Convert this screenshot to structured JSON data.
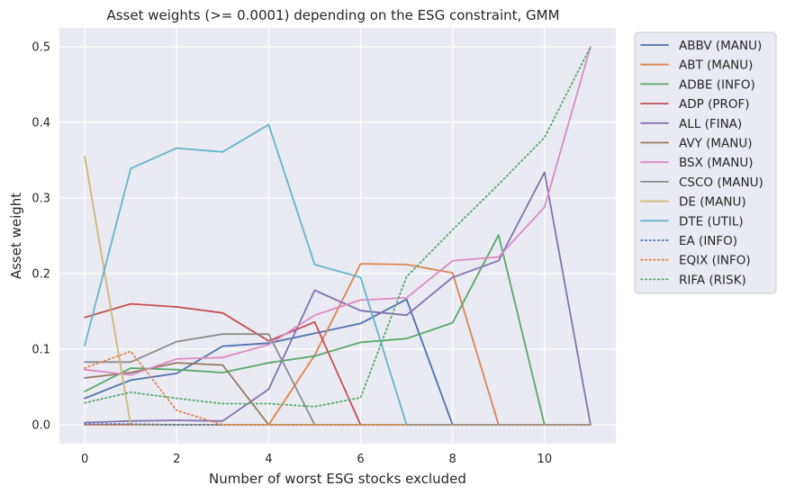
{
  "chart_data": {
    "type": "line",
    "title": "Asset weights (>= 0.0001) depending on the ESG constraint, GMM",
    "xlabel": "Number of worst ESG stocks excluded",
    "ylabel": "Asset weight",
    "xlim": [
      -0.55,
      11.55
    ],
    "ylim": [
      -0.025,
      0.525
    ],
    "xticks": [
      0,
      2,
      4,
      6,
      8,
      10
    ],
    "yticks": [
      0.0,
      0.1,
      0.2,
      0.3,
      0.4,
      0.5
    ],
    "ytick_labels": [
      "0.0",
      "0.1",
      "0.2",
      "0.3",
      "0.4",
      "0.5"
    ],
    "grid": true,
    "background": "#eaeaf2",
    "legend_position": "outside-right-top",
    "x": [
      0,
      1,
      2,
      3,
      4,
      5,
      6,
      7,
      8,
      9,
      10,
      11
    ],
    "series": [
      {
        "name": "ABBV (MANU)",
        "color": "#4c72b0",
        "style": "solid",
        "values": [
          0.035,
          0.059,
          0.068,
          0.104,
          0.108,
          0.121,
          0.134,
          0.166,
          0.0,
          0.0,
          0.0,
          0.0
        ]
      },
      {
        "name": "ABT (MANU)",
        "color": "#dd8452",
        "style": "solid",
        "values": [
          0.0,
          0.0,
          0.0,
          0.0,
          0.0,
          0.092,
          0.213,
          0.212,
          0.201,
          0.0,
          0.0,
          0.0
        ]
      },
      {
        "name": "ADBE (INFO)",
        "color": "#55a868",
        "style": "solid",
        "values": [
          0.044,
          0.075,
          0.073,
          0.069,
          0.082,
          0.091,
          0.109,
          0.114,
          0.135,
          0.251,
          0.0,
          0.0
        ]
      },
      {
        "name": "ADP (PROF)",
        "color": "#c44e52",
        "style": "solid",
        "values": [
          0.142,
          0.16,
          0.156,
          0.148,
          0.111,
          0.136,
          0.0,
          0.0,
          0.0,
          0.0,
          0.0,
          0.0
        ]
      },
      {
        "name": "ALL (FINA)",
        "color": "#8172b3",
        "style": "solid",
        "values": [
          0.003,
          0.005,
          0.006,
          0.005,
          0.047,
          0.178,
          0.151,
          0.145,
          0.195,
          0.217,
          0.334,
          0.0
        ]
      },
      {
        "name": "AVY (MANU)",
        "color": "#937860",
        "style": "solid",
        "values": [
          0.062,
          0.069,
          0.082,
          0.079,
          0.0,
          0.0,
          0.0,
          0.0,
          0.0,
          0.0,
          0.0,
          0.0
        ]
      },
      {
        "name": "BSX (MANU)",
        "color": "#da8bc3",
        "style": "solid",
        "values": [
          0.073,
          0.066,
          0.087,
          0.089,
          0.106,
          0.145,
          0.165,
          0.168,
          0.217,
          0.222,
          0.288,
          0.5
        ]
      },
      {
        "name": "CSCO (MANU)",
        "color": "#8c8c8c",
        "style": "solid",
        "values": [
          0.083,
          0.083,
          0.11,
          0.12,
          0.12,
          0.0,
          0.0,
          0.0,
          0.0,
          0.0,
          0.0,
          0.0
        ]
      },
      {
        "name": "DE (MANU)",
        "color": "#ccb974",
        "style": "solid",
        "values": [
          0.355,
          0.0,
          0.0,
          0.0,
          0.0,
          0.0,
          0.0,
          0.0,
          0.0,
          0.0,
          0.0,
          0.0
        ]
      },
      {
        "name": "DTE (UTIL)",
        "color": "#64b5cd",
        "style": "solid",
        "values": [
          0.105,
          0.339,
          0.366,
          0.361,
          0.397,
          0.212,
          0.195,
          0.0,
          0.0,
          0.0,
          0.0,
          0.0
        ]
      },
      {
        "name": "EA (INFO)",
        "color": "#4c72b0",
        "style": "dotted",
        "values": [
          0.001,
          0.001,
          0.0,
          0.0,
          0.0,
          0.0,
          0.0,
          0.0,
          0.0,
          0.0,
          0.0,
          0.0
        ]
      },
      {
        "name": "EQIX (INFO)",
        "color": "#dd8452",
        "style": "dotted",
        "values": [
          0.075,
          0.097,
          0.019,
          0.0,
          0.0,
          0.0,
          0.0,
          0.0,
          0.0,
          0.0,
          0.0,
          0.0
        ]
      },
      {
        "name": "RIFA (RISK)",
        "color": "#55a868",
        "style": "dotted",
        "values": [
          0.029,
          0.043,
          0.035,
          0.028,
          0.028,
          0.024,
          0.036,
          0.196,
          0.258,
          0.318,
          0.38,
          0.5
        ]
      }
    ]
  }
}
